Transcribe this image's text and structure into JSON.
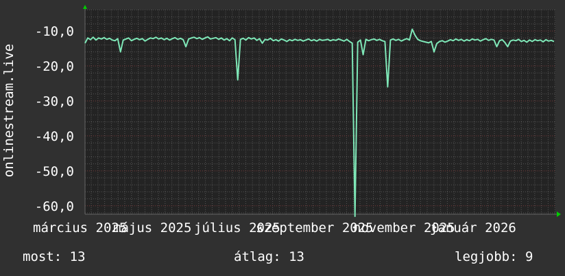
{
  "chart_data": {
    "type": "line",
    "ylabel": "onlinestream.live",
    "ylim": [
      -62.4,
      -3.9
    ],
    "y_ticks": [
      "-10,0",
      "-20,0",
      "-30,0",
      "-40,0",
      "-50,0",
      "-60,0"
    ],
    "y_tick_values": [
      -10,
      -20,
      -30,
      -40,
      -50,
      -60
    ],
    "x_ticks": [
      "március 2025",
      "május 2025",
      "július 2025",
      "szeptember 2025",
      "november 2025",
      "január 2026"
    ],
    "grid": true,
    "series": [
      {
        "color": "#7fe8b8",
        "values": [
          -13.5,
          -12.0,
          -12.5,
          -11.8,
          -12.6,
          -12.0,
          -12.3,
          -11.9,
          -12.4,
          -12.1,
          -12.6,
          -12.8,
          -12.2,
          -16.0,
          -12.6,
          -12.3,
          -12.0,
          -12.8,
          -12.4,
          -12.1,
          -12.5,
          -12.2,
          -12.9,
          -12.4,
          -12.0,
          -12.2,
          -11.8,
          -12.3,
          -12.0,
          -12.5,
          -12.1,
          -12.6,
          -12.2,
          -11.9,
          -12.4,
          -12.1,
          -12.5,
          -14.5,
          -12.3,
          -12.0,
          -11.8,
          -12.2,
          -11.9,
          -12.4,
          -12.0,
          -11.7,
          -12.3,
          -12.1,
          -11.9,
          -12.4,
          -12.0,
          -12.6,
          -12.2,
          -12.8,
          -12.0,
          -12.5,
          -24.0,
          -12.4,
          -12.1,
          -12.6,
          -11.9,
          -12.3,
          -12.0,
          -12.7,
          -12.2,
          -13.5,
          -12.4,
          -12.6,
          -12.1,
          -12.8,
          -12.5,
          -12.9,
          -12.3,
          -12.6,
          -13.0,
          -12.5,
          -12.8,
          -12.4,
          -12.7,
          -12.5,
          -12.9,
          -12.6,
          -12.3,
          -12.8,
          -12.5,
          -12.9,
          -12.4,
          -12.7,
          -12.6,
          -12.4,
          -12.8,
          -12.5,
          -12.7,
          -12.3,
          -12.6,
          -12.9,
          -12.4,
          -13.0,
          -13.5,
          -63.0,
          -13.2,
          -12.6,
          -16.8,
          -12.4,
          -12.8,
          -12.5,
          -12.3,
          -12.7,
          -12.4,
          -12.8,
          -13.0,
          -26.0,
          -12.6,
          -12.3,
          -12.7,
          -12.4,
          -12.9,
          -12.5,
          -12.2,
          -12.6,
          -9.5,
          -11.2,
          -12.4,
          -12.8,
          -13.0,
          -13.2,
          -13.4,
          -13.0,
          -16.0,
          -13.6,
          -13.0,
          -12.8,
          -13.2,
          -12.9,
          -12.5,
          -12.8,
          -12.3,
          -12.7,
          -12.4,
          -12.9,
          -12.5,
          -12.8,
          -12.3,
          -12.6,
          -12.4,
          -12.9,
          -12.5,
          -12.2,
          -12.7,
          -12.4,
          -12.6,
          -14.5,
          -12.8,
          -12.5,
          -13.3,
          -14.5,
          -12.9,
          -12.6,
          -12.8,
          -12.4,
          -13.0,
          -12.7,
          -13.2,
          -12.6,
          -13.0,
          -12.5,
          -12.8,
          -12.6,
          -13.1,
          -12.5,
          -12.9,
          -12.7,
          -13.0
        ]
      }
    ]
  },
  "legend": {
    "current": "most: 13",
    "average": "átlag: 13",
    "best": "legjobb: 9"
  }
}
